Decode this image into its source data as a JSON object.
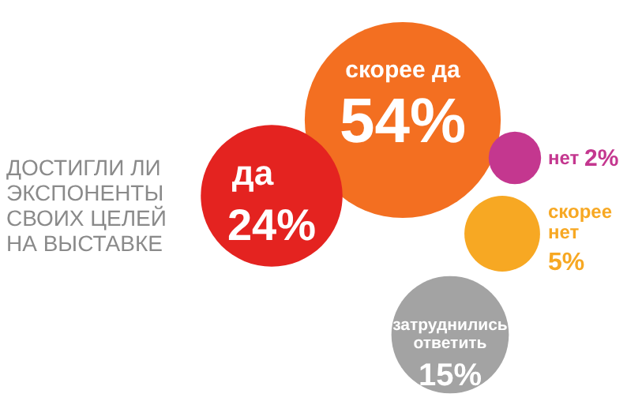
{
  "chart_data": {
    "type": "other",
    "title": "ДОСТИГЛИ ЛИ ЭКСПОНЕНТЫ СВОИХ ЦЕЛЕЙ НА ВЫСТАВКЕ",
    "categories": [
      "скорее да",
      "да",
      "нет",
      "скорее нет",
      "затруднились ответить"
    ],
    "values": [
      54,
      24,
      2,
      5,
      15
    ],
    "value_labels": [
      "54%",
      "24%",
      "2%",
      "5%",
      "15%"
    ],
    "colors": [
      "#f36f21",
      "#e42320",
      "#c4378f",
      "#f7a823",
      "#a3a3a3"
    ]
  }
}
